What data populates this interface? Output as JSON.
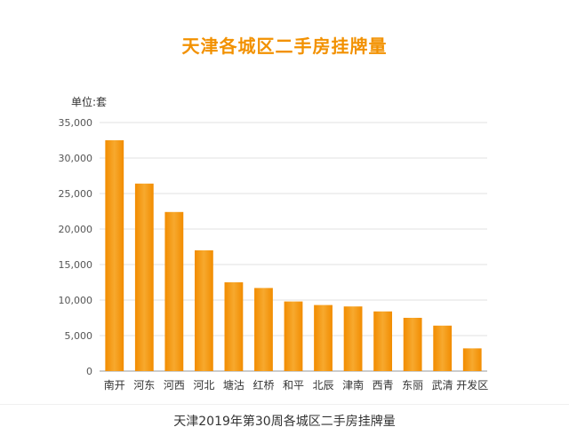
{
  "chart_data": {
    "type": "bar",
    "title": "天津各城区二手房挂牌量",
    "unit_label": "单位:套",
    "categories": [
      "南开",
      "河东",
      "河西",
      "河北",
      "塘沽",
      "红桥",
      "和平",
      "北辰",
      "津南",
      "西青",
      "东丽",
      "武清",
      "开发区"
    ],
    "values": [
      32500,
      26400,
      22400,
      17000,
      12500,
      11700,
      9800,
      9300,
      9100,
      8400,
      7500,
      6400,
      3200
    ],
    "ylim": [
      0,
      35000
    ],
    "yticks": [
      0,
      5000,
      10000,
      15000,
      20000,
      25000,
      30000,
      35000
    ],
    "ytick_labels": [
      "0",
      "5,000",
      "10,000",
      "15,000",
      "20,000",
      "25,000",
      "30,000",
      "35,000"
    ],
    "grid": true,
    "bar_color": "#f28c00",
    "bar_highlight": "#f7a92e",
    "title_color": "#f29100"
  },
  "caption": "天津2019年第30周各城区二手房挂牌量"
}
